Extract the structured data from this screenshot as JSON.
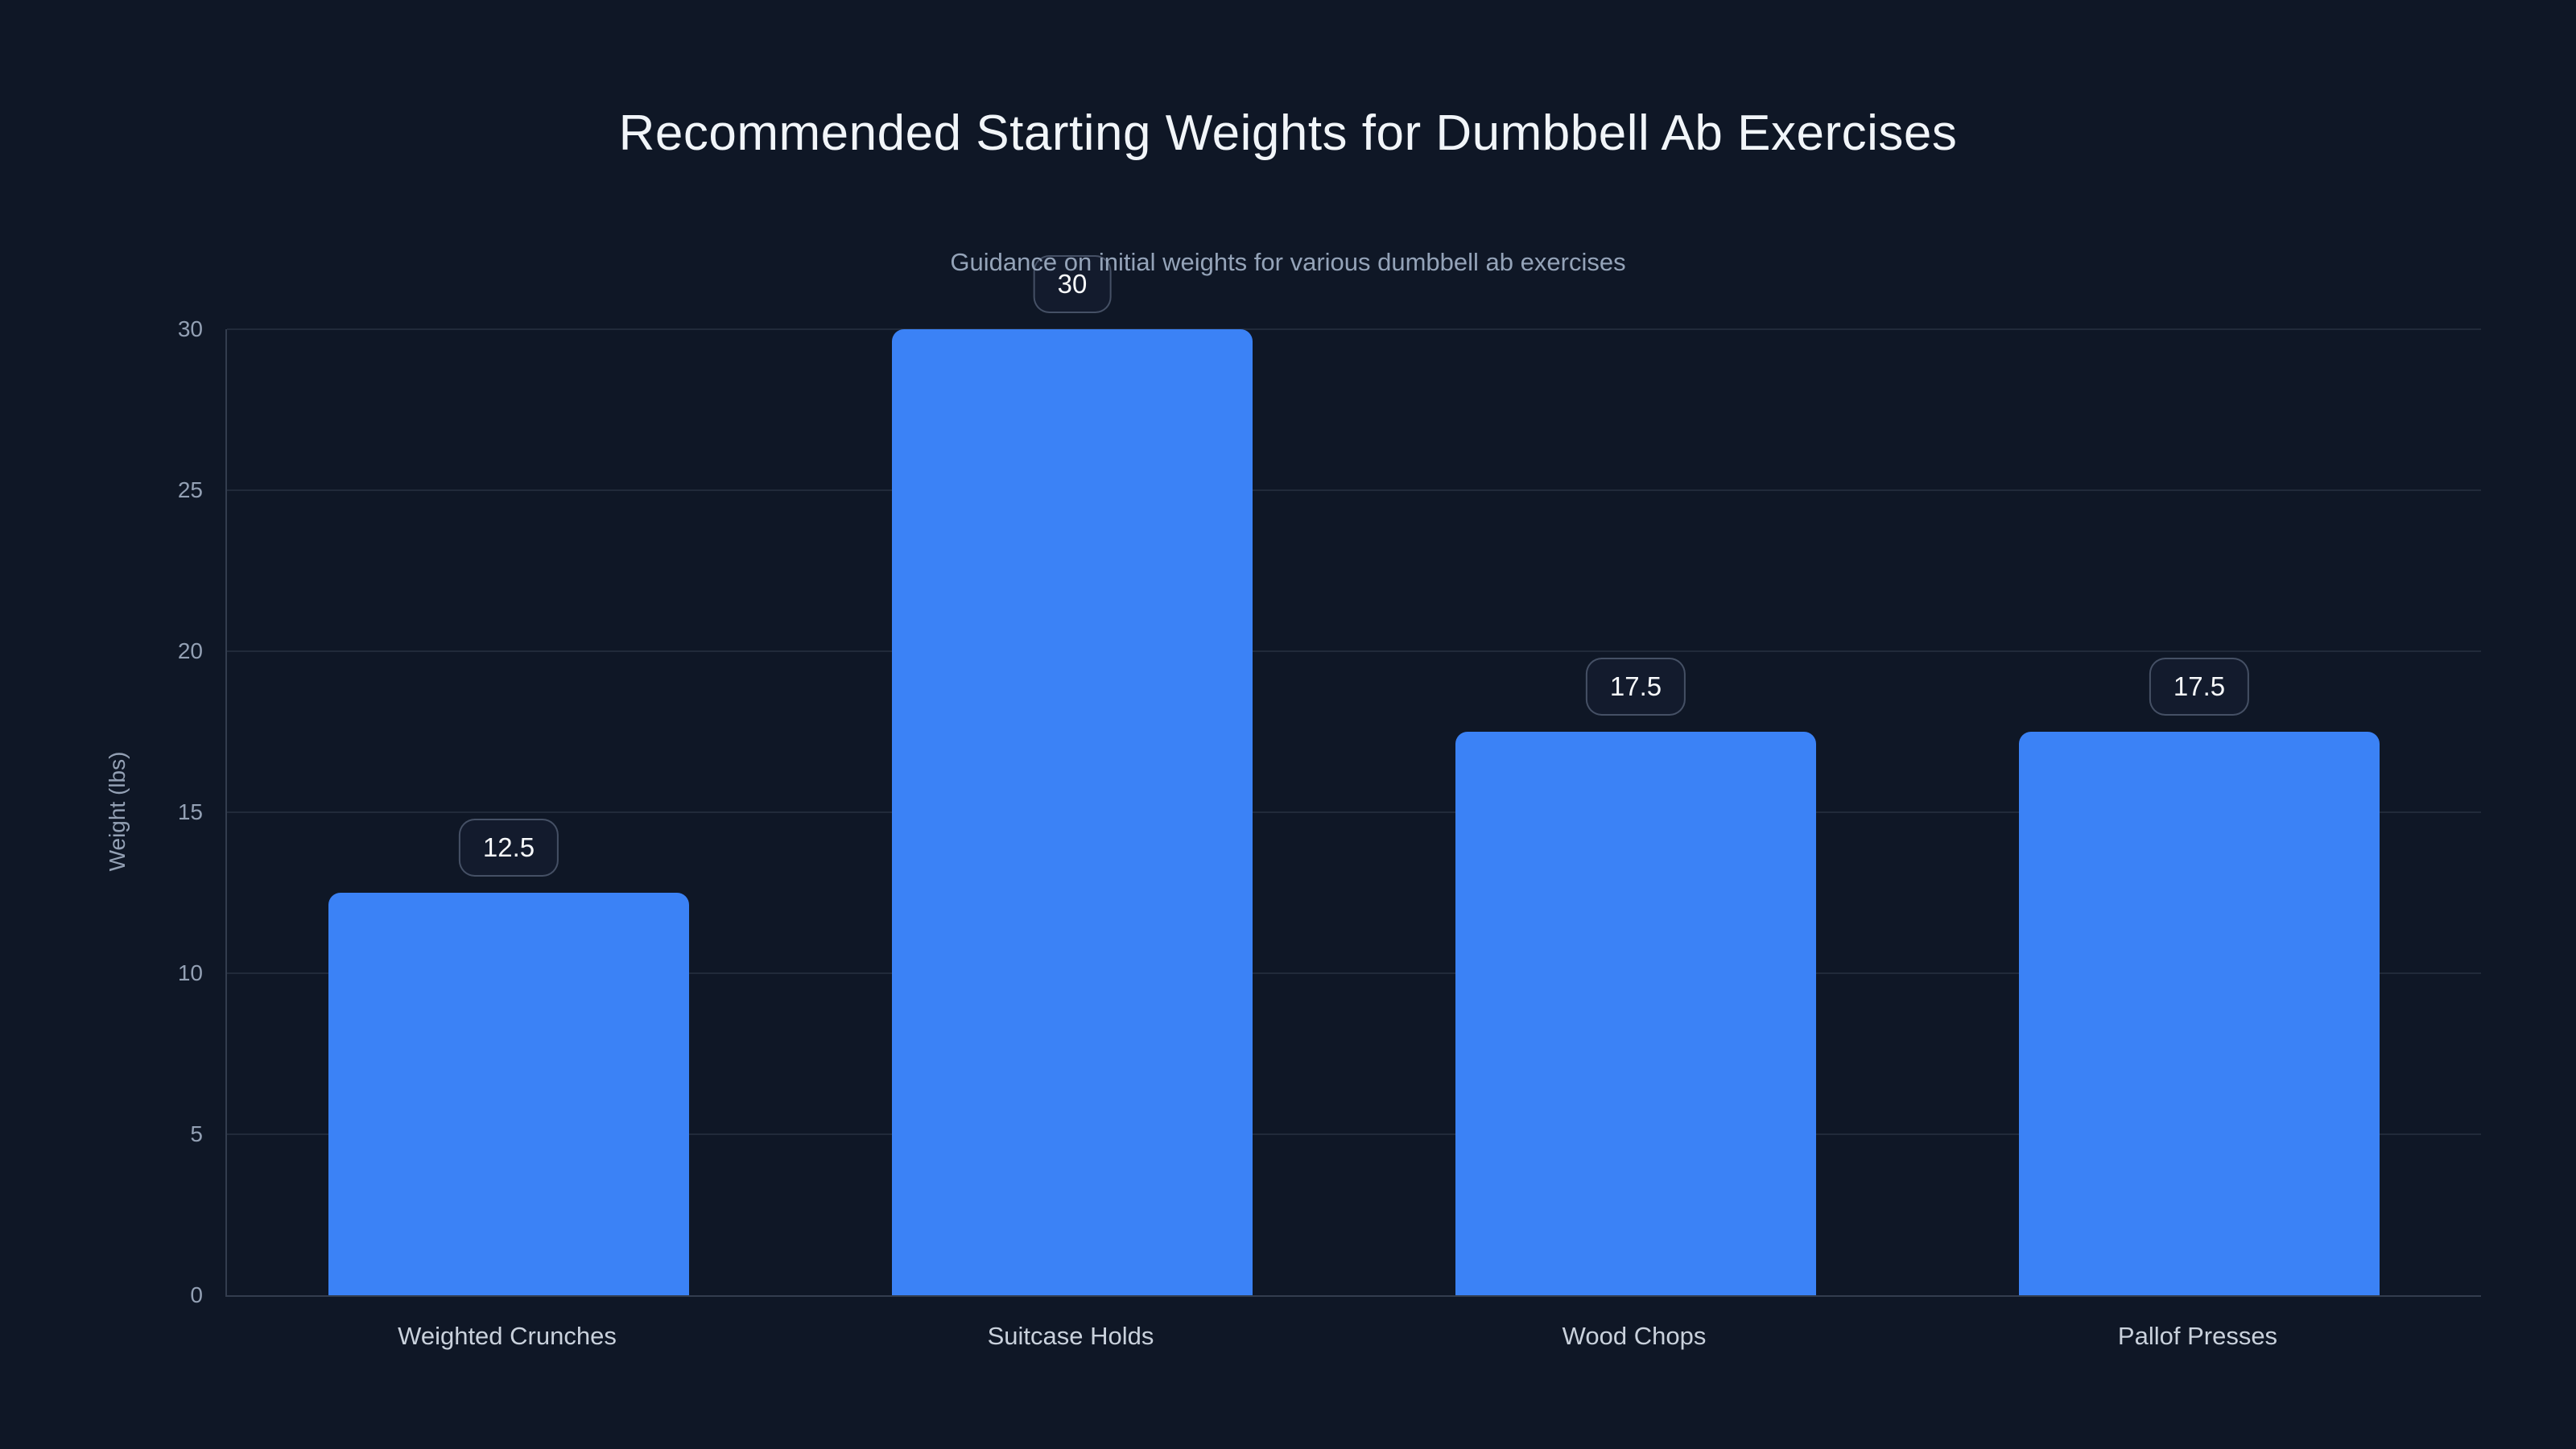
{
  "colors": {
    "background": "#0f1726",
    "bar": "#3b82f6",
    "title": "#f1f5f9",
    "subtitle": "#94a3b8",
    "tick": "#93a0b4",
    "xlabel": "#c9d1dc",
    "grid": "rgba(148,163,184,0.14)",
    "axis": "rgba(148,163,184,0.28)",
    "badge_border": "rgba(148,163,184,0.4)",
    "badge_bg": "rgba(21,30,50,0.6)",
    "badge_text": "#f8fafc"
  },
  "chart_data": {
    "type": "bar",
    "title": "Recommended Starting Weights for Dumbbell Ab Exercises",
    "subtitle": "Guidance on initial weights for various dumbbell ab exercises",
    "ylabel": "Weight (lbs)",
    "xlabel": "",
    "categories": [
      "Weighted Crunches",
      "Suitcase Holds",
      "Wood Chops",
      "Pallof Presses"
    ],
    "values": [
      12.5,
      30,
      17.5,
      17.5
    ],
    "value_labels": [
      "12.5",
      "30",
      "17.5",
      "17.5"
    ],
    "yticks": [
      0,
      5,
      10,
      15,
      20,
      25,
      30
    ],
    "ylim": [
      0,
      30
    ],
    "grid": true,
    "legend": "none",
    "bar_width_fraction": 0.64,
    "rounded_bar_tops": true
  }
}
